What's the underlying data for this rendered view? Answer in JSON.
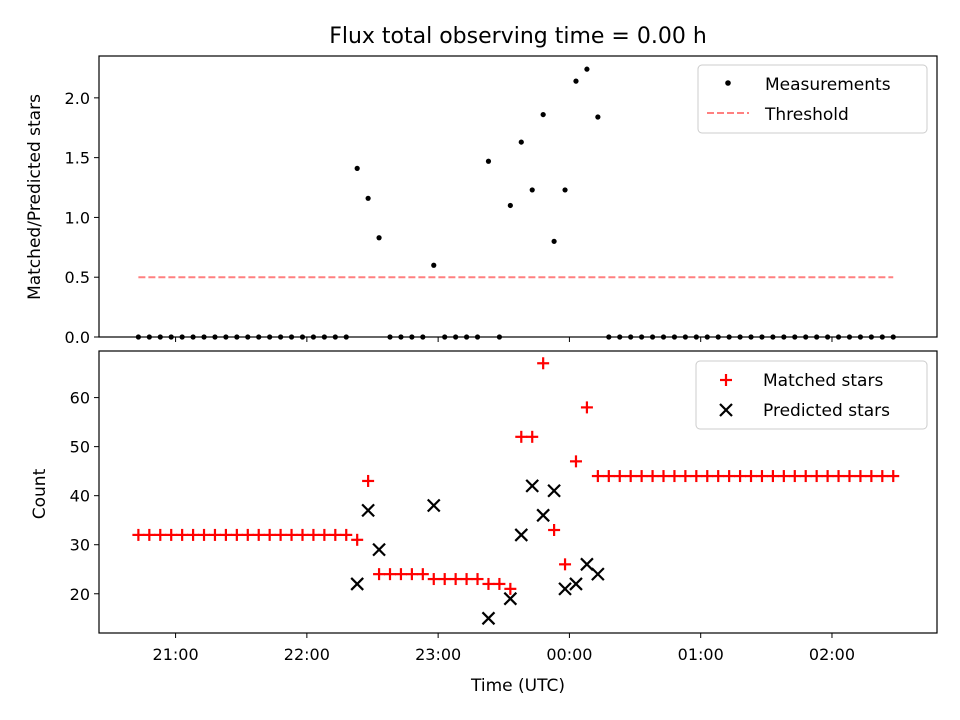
{
  "title": "Flux total observing time = 0.00 h",
  "colors": {
    "threshold": "#ff8080",
    "matched": "#ff0000",
    "predicted": "#000000",
    "measurements": "#000000"
  },
  "chart_data": [
    {
      "type": "scatter",
      "ylabel": "Matched/Predicted stars",
      "xlim": [
        "20:25",
        "02:48"
      ],
      "ylim": [
        0,
        2.35
      ],
      "yticks": [
        0.0,
        0.5,
        1.0,
        1.5,
        2.0
      ],
      "ytick_labels": [
        "0.0",
        "0.5",
        "1.0",
        "1.5",
        "2.0"
      ],
      "legend_position": "top-right",
      "grid": false,
      "series": [
        {
          "name": "Measurements",
          "kind": "points",
          "x": [
            "20:43",
            "20:48",
            "20:53",
            "20:58",
            "21:03",
            "21:08",
            "21:13",
            "21:18",
            "21:23",
            "21:28",
            "21:33",
            "21:38",
            "21:43",
            "21:48",
            "21:53",
            "21:58",
            "22:03",
            "22:08",
            "22:13",
            "22:18",
            "22:23",
            "22:28",
            "22:33",
            "22:38",
            "22:43",
            "22:48",
            "22:53",
            "22:58",
            "23:03",
            "23:08",
            "23:13",
            "23:18",
            "23:23",
            "23:28",
            "23:33",
            "23:38",
            "23:43",
            "23:48",
            "23:53",
            "23:58",
            "00:03",
            "00:08",
            "00:13",
            "00:18",
            "00:23",
            "00:28",
            "00:33",
            "00:38",
            "00:43",
            "00:48",
            "00:53",
            "00:58",
            "01:03",
            "01:08",
            "01:13",
            "01:18",
            "01:23",
            "01:28",
            "01:33",
            "01:38",
            "01:43",
            "01:48",
            "01:53",
            "01:58",
            "02:03",
            "02:08",
            "02:13",
            "02:18",
            "02:23",
            "02:28"
          ],
          "y": [
            0,
            0,
            0,
            0,
            0,
            0,
            0,
            0,
            0,
            0,
            0,
            0,
            0,
            0,
            0,
            0,
            0,
            0,
            0,
            0,
            1.41,
            1.16,
            0.83,
            0,
            0,
            0,
            0,
            0.6,
            0,
            0,
            0,
            0,
            1.47,
            0,
            1.1,
            1.63,
            1.23,
            1.86,
            0.8,
            1.23,
            2.14,
            2.24,
            1.84,
            0,
            0,
            0,
            0,
            0,
            0,
            0,
            0,
            0,
            0,
            0,
            0,
            0,
            0,
            0,
            0,
            0,
            0,
            0,
            0,
            0,
            0,
            0,
            0,
            0,
            0,
            0
          ]
        },
        {
          "name": "Threshold",
          "kind": "dashed-line",
          "x": [
            "20:43",
            "02:28"
          ],
          "y": [
            0.5,
            0.5
          ]
        }
      ]
    },
    {
      "type": "scatter",
      "xlabel": "Time (UTC)",
      "ylabel": "Count",
      "xlim": [
        "20:25",
        "02:48"
      ],
      "ylim": [
        12,
        69.5
      ],
      "yticks": [
        20,
        30,
        40,
        50,
        60
      ],
      "ytick_labels": [
        "20",
        "30",
        "40",
        "50",
        "60"
      ],
      "xticks": [
        "21:00",
        "22:00",
        "23:00",
        "00:00",
        "01:00",
        "02:00"
      ],
      "legend_position": "top-right",
      "grid": false,
      "series": [
        {
          "name": "Matched stars",
          "kind": "plus",
          "x": [
            "20:43",
            "20:48",
            "20:53",
            "20:58",
            "21:03",
            "21:08",
            "21:13",
            "21:18",
            "21:23",
            "21:28",
            "21:33",
            "21:38",
            "21:43",
            "21:48",
            "21:53",
            "21:58",
            "22:03",
            "22:08",
            "22:13",
            "22:18",
            "22:23",
            "22:28",
            "22:33",
            "22:38",
            "22:43",
            "22:48",
            "22:53",
            "22:58",
            "23:03",
            "23:08",
            "23:13",
            "23:18",
            "23:23",
            "23:28",
            "23:33",
            "23:38",
            "23:43",
            "23:48",
            "23:53",
            "23:58",
            "00:03",
            "00:08",
            "00:13",
            "00:18",
            "00:23",
            "00:28",
            "00:33",
            "00:38",
            "00:43",
            "00:48",
            "00:53",
            "00:58",
            "01:03",
            "01:08",
            "01:13",
            "01:18",
            "01:23",
            "01:28",
            "01:33",
            "01:38",
            "01:43",
            "01:48",
            "01:53",
            "01:58",
            "02:03",
            "02:08",
            "02:13",
            "02:18",
            "02:23",
            "02:28"
          ],
          "y": [
            32,
            32,
            32,
            32,
            32,
            32,
            32,
            32,
            32,
            32,
            32,
            32,
            32,
            32,
            32,
            32,
            32,
            32,
            32,
            32,
            31,
            43,
            24,
            24,
            24,
            24,
            24,
            23,
            23,
            23,
            23,
            23,
            22,
            22,
            21,
            52,
            52,
            67,
            33,
            26,
            47,
            58,
            44,
            44,
            44,
            44,
            44,
            44,
            44,
            44,
            44,
            44,
            44,
            44,
            44,
            44,
            44,
            44,
            44,
            44,
            44,
            44,
            44,
            44,
            44,
            44,
            44,
            44,
            44,
            44
          ]
        },
        {
          "name": "Predicted stars",
          "kind": "cross",
          "x": [
            "22:23",
            "22:28",
            "22:33",
            "22:58",
            "23:23",
            "23:33",
            "23:38",
            "23:43",
            "23:48",
            "23:53",
            "23:58",
            "00:03",
            "00:08",
            "00:13"
          ],
          "y": [
            22,
            37,
            29,
            38,
            15,
            19,
            32,
            42,
            36,
            41,
            21,
            22,
            26,
            24
          ]
        }
      ]
    }
  ]
}
